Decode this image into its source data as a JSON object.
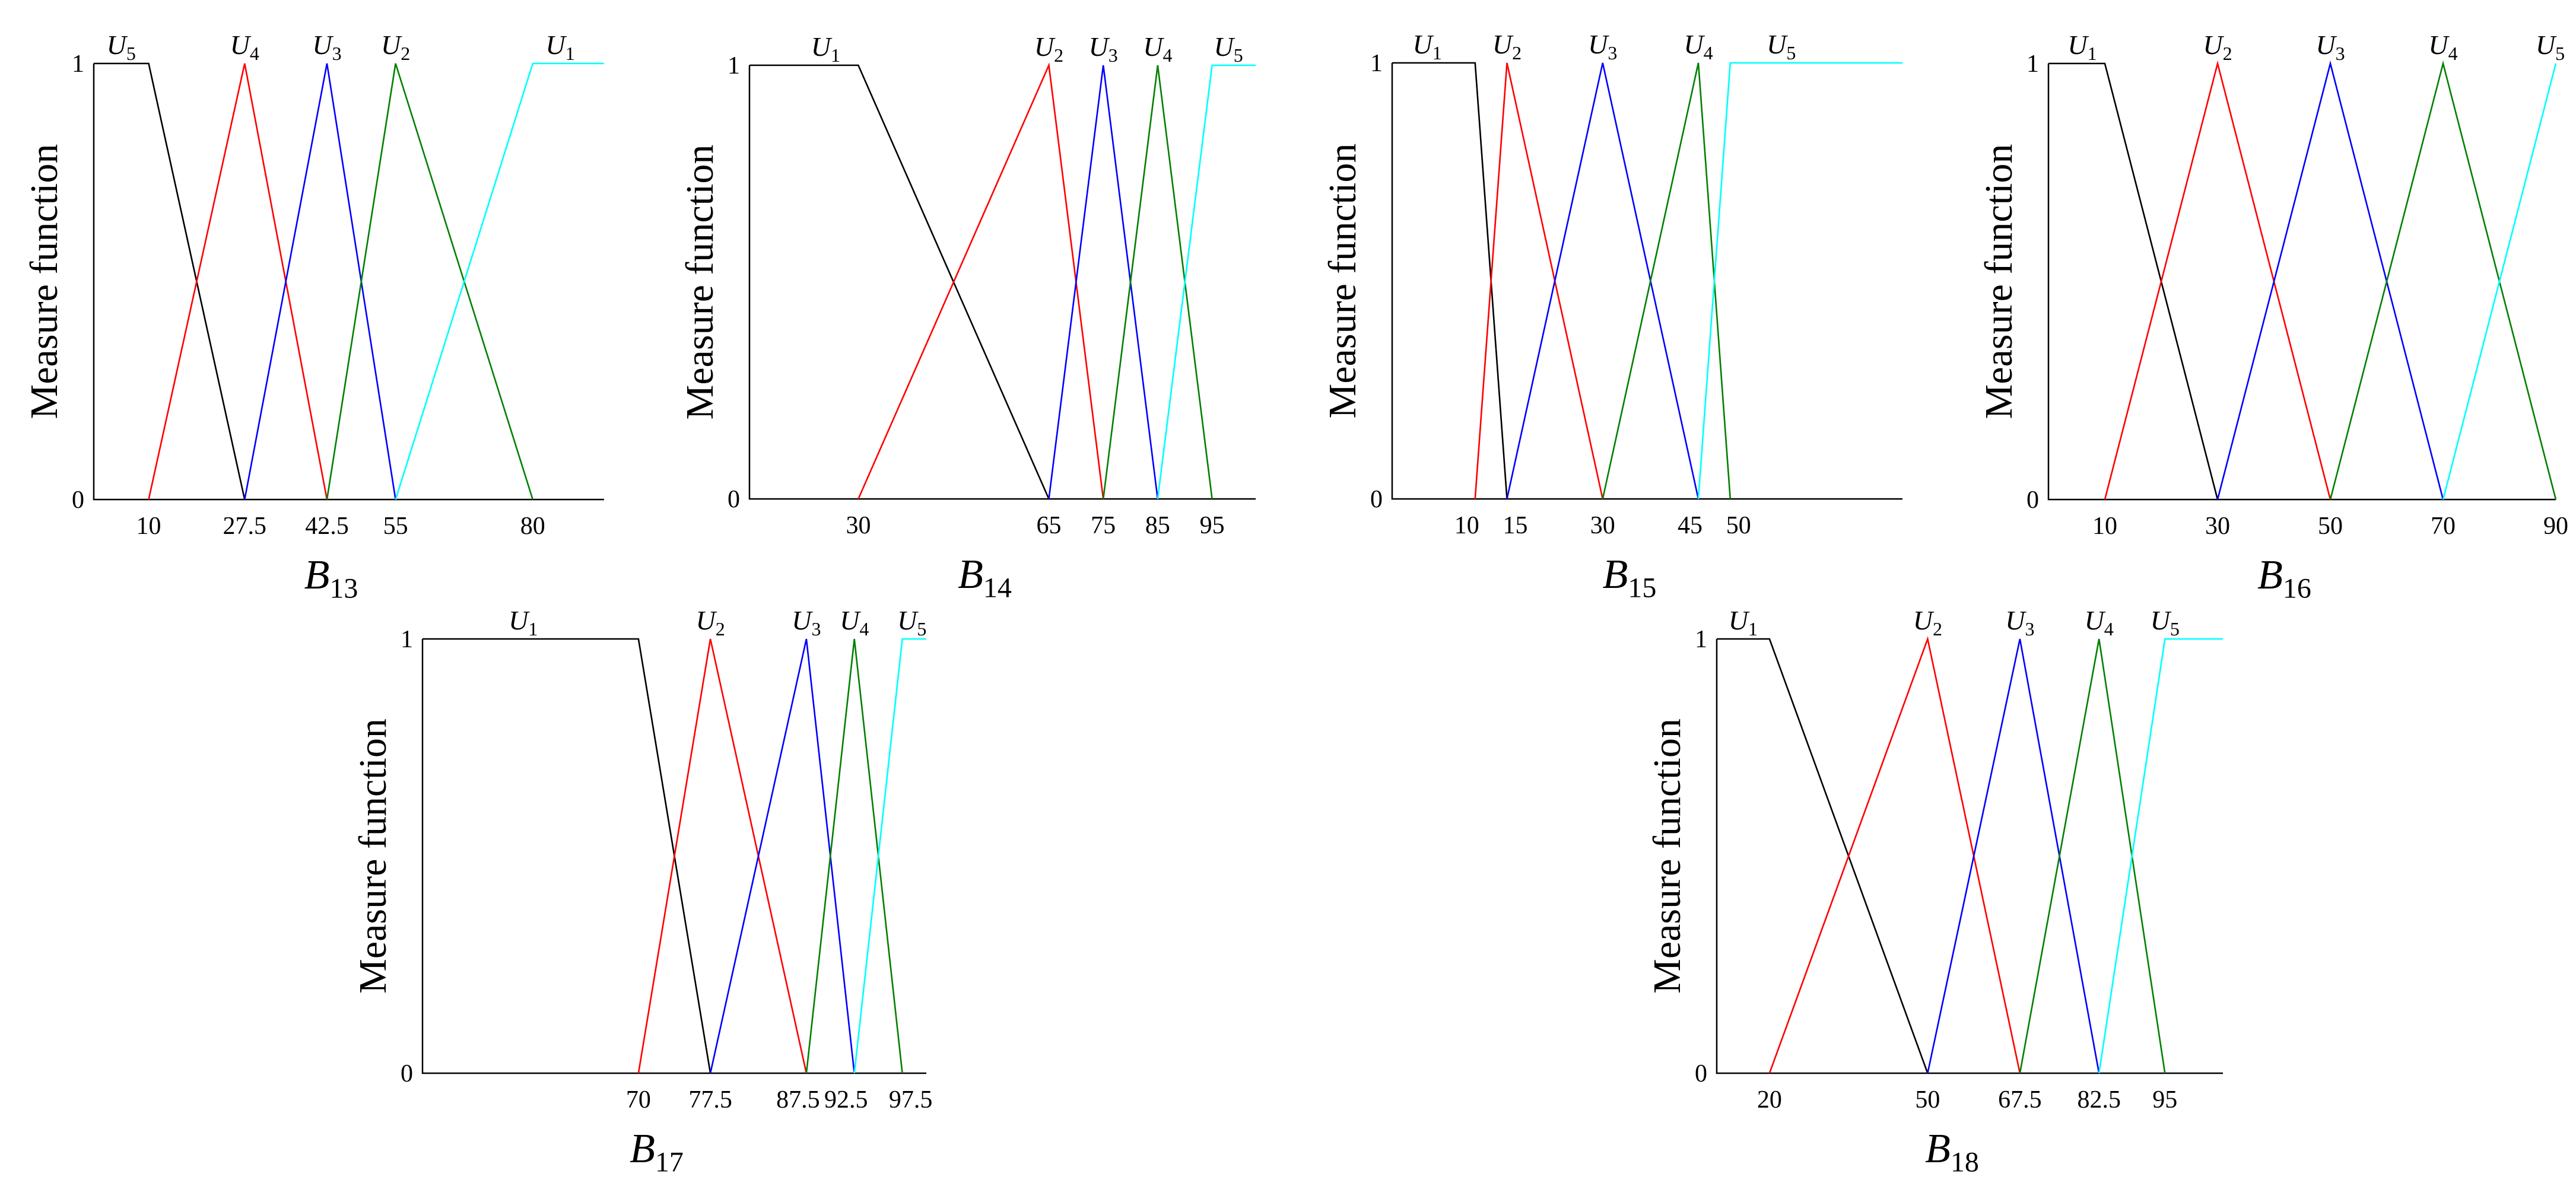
{
  "figure": {
    "colors": {
      "U1": "#000000",
      "U2": "#ff0000",
      "U3": "#0000ff",
      "U4": "#008000",
      "U5": "#00ffff"
    },
    "color_order_by_set": [
      "U1",
      "U2",
      "U3",
      "U4",
      "U5"
    ]
  },
  "chart_data": [
    {
      "type": "line",
      "panel_label": {
        "base": "B",
        "sub": "13"
      },
      "ylabel": "Measure function",
      "y_ticks": [
        "0",
        "1"
      ],
      "ylim": [
        0,
        1
      ],
      "xlim": [
        0,
        93
      ],
      "x_ticks": [
        10,
        27.5,
        42.5,
        55,
        80
      ],
      "x_tick_labels": [
        "10",
        "27.5",
        "42.5",
        "55",
        "80"
      ],
      "series": [
        {
          "name": "U5",
          "x": [
            0,
            10,
            27.5
          ],
          "y": [
            1,
            1,
            0
          ],
          "color": "#000000"
        },
        {
          "name": "U4",
          "x": [
            10,
            27.5,
            42.5
          ],
          "y": [
            0,
            1,
            0
          ],
          "color": "#ff0000"
        },
        {
          "name": "U3",
          "x": [
            27.5,
            42.5,
            55
          ],
          "y": [
            0,
            1,
            0
          ],
          "color": "#0000ff"
        },
        {
          "name": "U2",
          "x": [
            42.5,
            55,
            80
          ],
          "y": [
            0,
            1,
            0
          ],
          "color": "#008000"
        },
        {
          "name": "U1",
          "x": [
            55,
            80,
            93
          ],
          "y": [
            0,
            1,
            1
          ],
          "color": "#00ffff"
        }
      ],
      "set_labels": [
        {
          "base": "U",
          "sub": "5",
          "x": 5
        },
        {
          "base": "U",
          "sub": "4",
          "x": 27.5
        },
        {
          "base": "U",
          "sub": "3",
          "x": 42.5
        },
        {
          "base": "U",
          "sub": "2",
          "x": 55
        },
        {
          "base": "U",
          "sub": "1",
          "x": 85
        }
      ]
    },
    {
      "type": "line",
      "panel_label": {
        "base": "B",
        "sub": "14"
      },
      "ylabel": "Measure function",
      "y_ticks": [
        "0",
        "1"
      ],
      "ylim": [
        0,
        1
      ],
      "xlim": [
        10,
        103
      ],
      "x_ticks": [
        30,
        65,
        75,
        85,
        95
      ],
      "x_tick_labels": [
        "30",
        "65",
        "75",
        "85",
        "95"
      ],
      "series": [
        {
          "name": "U1",
          "x": [
            10,
            30,
            65
          ],
          "y": [
            1,
            1,
            0
          ],
          "color": "#000000"
        },
        {
          "name": "U2",
          "x": [
            30,
            65,
            75
          ],
          "y": [
            0,
            1,
            0
          ],
          "color": "#ff0000"
        },
        {
          "name": "U3",
          "x": [
            65,
            75,
            85
          ],
          "y": [
            0,
            1,
            0
          ],
          "color": "#0000ff"
        },
        {
          "name": "U4",
          "x": [
            75,
            85,
            95
          ],
          "y": [
            0,
            1,
            0
          ],
          "color": "#008000"
        },
        {
          "name": "U5",
          "x": [
            85,
            95,
            103
          ],
          "y": [
            0,
            1,
            1
          ],
          "color": "#00ffff"
        }
      ],
      "set_labels": [
        {
          "base": "U",
          "sub": "1",
          "x": 24
        },
        {
          "base": "U",
          "sub": "2",
          "x": 65
        },
        {
          "base": "U",
          "sub": "3",
          "x": 75
        },
        {
          "base": "U",
          "sub": "4",
          "x": 85
        },
        {
          "base": "U",
          "sub": "5",
          "x": 98
        }
      ]
    },
    {
      "type": "line",
      "panel_label": {
        "base": "B",
        "sub": "15"
      },
      "ylabel": "Measure function",
      "y_ticks": [
        "0",
        "1"
      ],
      "ylim": [
        0,
        1
      ],
      "xlim": [
        -3,
        77
      ],
      "x_ticks": [
        10,
        15,
        30,
        45,
        50
      ],
      "x_tick_labels": [
        "10",
        "15",
        "30",
        "45",
        "50"
      ],
      "series": [
        {
          "name": "U1",
          "x": [
            -3,
            10,
            15
          ],
          "y": [
            1,
            1,
            0
          ],
          "color": "#000000"
        },
        {
          "name": "U2",
          "x": [
            10,
            15,
            30
          ],
          "y": [
            0,
            1,
            0
          ],
          "color": "#ff0000"
        },
        {
          "name": "U3",
          "x": [
            15,
            30,
            45
          ],
          "y": [
            0,
            1,
            0
          ],
          "color": "#0000ff"
        },
        {
          "name": "U4",
          "x": [
            30,
            45,
            50
          ],
          "y": [
            0,
            1,
            0
          ],
          "color": "#008000"
        },
        {
          "name": "U5",
          "x": [
            45,
            50,
            77
          ],
          "y": [
            0,
            1,
            1
          ],
          "color": "#00ffff"
        }
      ],
      "set_labels": [
        {
          "base": "U",
          "sub": "1",
          "x": 2.5
        },
        {
          "base": "U",
          "sub": "2",
          "x": 15
        },
        {
          "base": "U",
          "sub": "3",
          "x": 30
        },
        {
          "base": "U",
          "sub": "4",
          "x": 45
        },
        {
          "base": "U",
          "sub": "5",
          "x": 58
        }
      ]
    },
    {
      "type": "line",
      "panel_label": {
        "base": "B",
        "sub": "16"
      },
      "ylabel": "Measure function",
      "y_ticks": [
        "0",
        "1"
      ],
      "ylim": [
        0,
        1
      ],
      "xlim": [
        0,
        90
      ],
      "x_ticks": [
        10,
        30,
        50,
        70,
        90
      ],
      "x_tick_labels": [
        "10",
        "30",
        "50",
        "70",
        "90"
      ],
      "series": [
        {
          "name": "U1",
          "x": [
            0,
            10,
            30
          ],
          "y": [
            1,
            1,
            0
          ],
          "color": "#000000"
        },
        {
          "name": "U2",
          "x": [
            10,
            30,
            50
          ],
          "y": [
            0,
            1,
            0
          ],
          "color": "#ff0000"
        },
        {
          "name": "U3",
          "x": [
            30,
            50,
            70
          ],
          "y": [
            0,
            1,
            0
          ],
          "color": "#0000ff"
        },
        {
          "name": "U4",
          "x": [
            50,
            70,
            90
          ],
          "y": [
            0,
            1,
            0
          ],
          "color": "#008000"
        },
        {
          "name": "U5",
          "x": [
            70,
            90
          ],
          "y": [
            0,
            1
          ],
          "color": "#00ffff"
        }
      ],
      "set_labels": [
        {
          "base": "U",
          "sub": "1",
          "x": 6
        },
        {
          "base": "U",
          "sub": "2",
          "x": 30
        },
        {
          "base": "U",
          "sub": "3",
          "x": 50
        },
        {
          "base": "U",
          "sub": "4",
          "x": 70
        },
        {
          "base": "U",
          "sub": "5",
          "x": 89
        }
      ]
    },
    {
      "type": "line",
      "panel_label": {
        "base": "B",
        "sub": "17"
      },
      "ylabel": "Measure function",
      "y_ticks": [
        "0",
        "1"
      ],
      "ylim": [
        0,
        1
      ],
      "xlim": [
        47.5,
        100
      ],
      "x_ticks": [
        70,
        77.5,
        87.5,
        92.5,
        97.5
      ],
      "x_tick_labels": [
        "70",
        "77.5",
        "87.5",
        "92.5",
        "97.5"
      ],
      "series": [
        {
          "name": "U1",
          "x": [
            47.5,
            70,
            77.5
          ],
          "y": [
            1,
            1,
            0
          ],
          "color": "#000000"
        },
        {
          "name": "U2",
          "x": [
            70,
            77.5,
            87.5
          ],
          "y": [
            0,
            1,
            0
          ],
          "color": "#ff0000"
        },
        {
          "name": "U3",
          "x": [
            77.5,
            87.5,
            92.5
          ],
          "y": [
            0,
            1,
            0
          ],
          "color": "#0000ff"
        },
        {
          "name": "U4",
          "x": [
            87.5,
            92.5,
            97.5
          ],
          "y": [
            0,
            1,
            0
          ],
          "color": "#008000"
        },
        {
          "name": "U5",
          "x": [
            92.5,
            97.5,
            100
          ],
          "y": [
            0,
            1,
            1
          ],
          "color": "#00ffff"
        }
      ],
      "set_labels": [
        {
          "base": "U",
          "sub": "1",
          "x": 58
        },
        {
          "base": "U",
          "sub": "2",
          "x": 77.5
        },
        {
          "base": "U",
          "sub": "3",
          "x": 87.5
        },
        {
          "base": "U",
          "sub": "4",
          "x": 92.5
        },
        {
          "base": "U",
          "sub": "5",
          "x": 98.5
        }
      ]
    },
    {
      "type": "line",
      "panel_label": {
        "base": "B",
        "sub": "18"
      },
      "ylabel": "Measure function",
      "y_ticks": [
        "0",
        "1"
      ],
      "ylim": [
        0,
        1
      ],
      "xlim": [
        10,
        106
      ],
      "x_ticks": [
        20,
        50,
        67.5,
        82.5,
        95
      ],
      "x_tick_labels": [
        "20",
        "50",
        "67.5",
        "82.5",
        "95"
      ],
      "series": [
        {
          "name": "U1",
          "x": [
            10,
            20,
            50
          ],
          "y": [
            1,
            1,
            0
          ],
          "color": "#000000"
        },
        {
          "name": "U2",
          "x": [
            20,
            50,
            67.5
          ],
          "y": [
            0,
            1,
            0
          ],
          "color": "#ff0000"
        },
        {
          "name": "U3",
          "x": [
            50,
            67.5,
            82.5
          ],
          "y": [
            0,
            1,
            0
          ],
          "color": "#0000ff"
        },
        {
          "name": "U4",
          "x": [
            67.5,
            82.5,
            95
          ],
          "y": [
            0,
            1,
            0
          ],
          "color": "#008000"
        },
        {
          "name": "U5",
          "x": [
            82.5,
            95,
            106
          ],
          "y": [
            0,
            1,
            1
          ],
          "color": "#00ffff"
        }
      ],
      "set_labels": [
        {
          "base": "U",
          "sub": "1",
          "x": 15
        },
        {
          "base": "U",
          "sub": "2",
          "x": 50
        },
        {
          "base": "U",
          "sub": "3",
          "x": 67.5
        },
        {
          "base": "U",
          "sub": "4",
          "x": 82.5
        },
        {
          "base": "U",
          "sub": "5",
          "x": 95
        }
      ]
    }
  ]
}
